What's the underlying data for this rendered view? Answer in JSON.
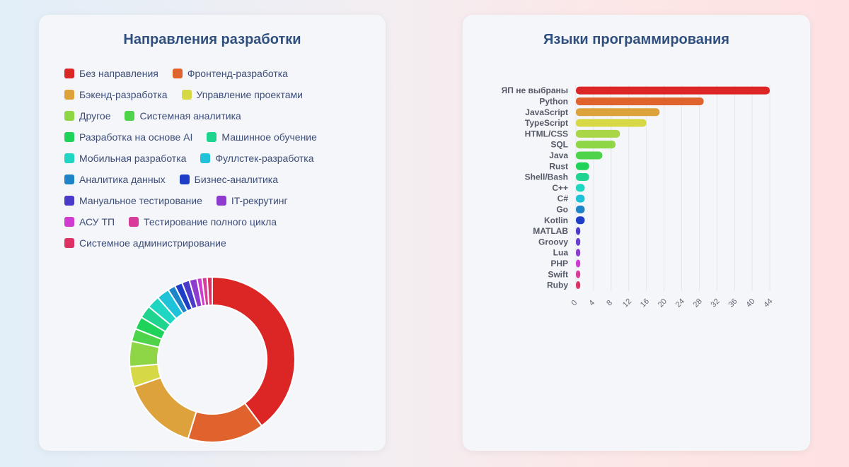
{
  "left_card": {
    "title": "Направления разработки"
  },
  "right_card": {
    "title": "Языки программирования"
  },
  "chart_data": [
    {
      "type": "pie",
      "variant": "donut",
      "title": "Направления разработки",
      "legend_position": "top",
      "categories": [
        "Без направления",
        "Фронтенд-разработка",
        "Бэкенд-разработка",
        "Управление проектами",
        "Другое",
        "Системная аналитика",
        "Разработка на основе AI",
        "Машинное обучение",
        "Мобильная разработка",
        "Фуллстек-разработка",
        "Аналитика данных",
        "Бизнес-аналитика",
        "Мануальное тестирование",
        "IT-рекрутинг",
        "АСУ ТП",
        "Тестирование полного цикла",
        "Системное администрирование"
      ],
      "values": [
        40,
        15,
        15,
        4,
        5,
        2.5,
        2.5,
        2.5,
        2.5,
        2.5,
        1.5,
        1.5,
        1.5,
        1.5,
        1,
        1,
        1
      ],
      "colors": [
        "#dc2626",
        "#e0632e",
        "#dda23c",
        "#d6d846",
        "#8ed646",
        "#4fd34a",
        "#1fd35a",
        "#1ed48e",
        "#1ed6c2",
        "#1ec2d9",
        "#1f83c8",
        "#1f3ec8",
        "#4a3cc8",
        "#8e3cd0",
        "#d03cd0",
        "#d83c9a",
        "#dc3363"
      ]
    },
    {
      "type": "bar",
      "orientation": "horizontal",
      "title": "Языки программирования",
      "categories": [
        "ЯП не выбраны",
        "Python",
        "JavaScript",
        "TypeScript",
        "HTML/CSS",
        "SQL",
        "Java",
        "Rust",
        "Shell/Bash",
        "C++",
        "C#",
        "Go",
        "Kotlin",
        "MATLAB",
        "Groovy",
        "Lua",
        "PHP",
        "Swift",
        "Ruby"
      ],
      "values": [
        44,
        29,
        19,
        16,
        10,
        9,
        6,
        3,
        3,
        2,
        2,
        2,
        2,
        1,
        1,
        1,
        1,
        1,
        1
      ],
      "colors": [
        "#dc2626",
        "#e0632e",
        "#dda23c",
        "#d6d846",
        "#a8d646",
        "#8ed646",
        "#4fd34a",
        "#1fd35a",
        "#1ed48e",
        "#1ed6c2",
        "#1ec2d9",
        "#1f83c8",
        "#1f3ec8",
        "#4a3cc8",
        "#6a3cd0",
        "#8e3cd0",
        "#d03cd0",
        "#d83c9a",
        "#dc3363"
      ],
      "xlim": [
        0,
        44
      ],
      "ticks": [
        0,
        4,
        8,
        12,
        16,
        20,
        24,
        28,
        32,
        36,
        40,
        44
      ],
      "grid": true
    }
  ]
}
